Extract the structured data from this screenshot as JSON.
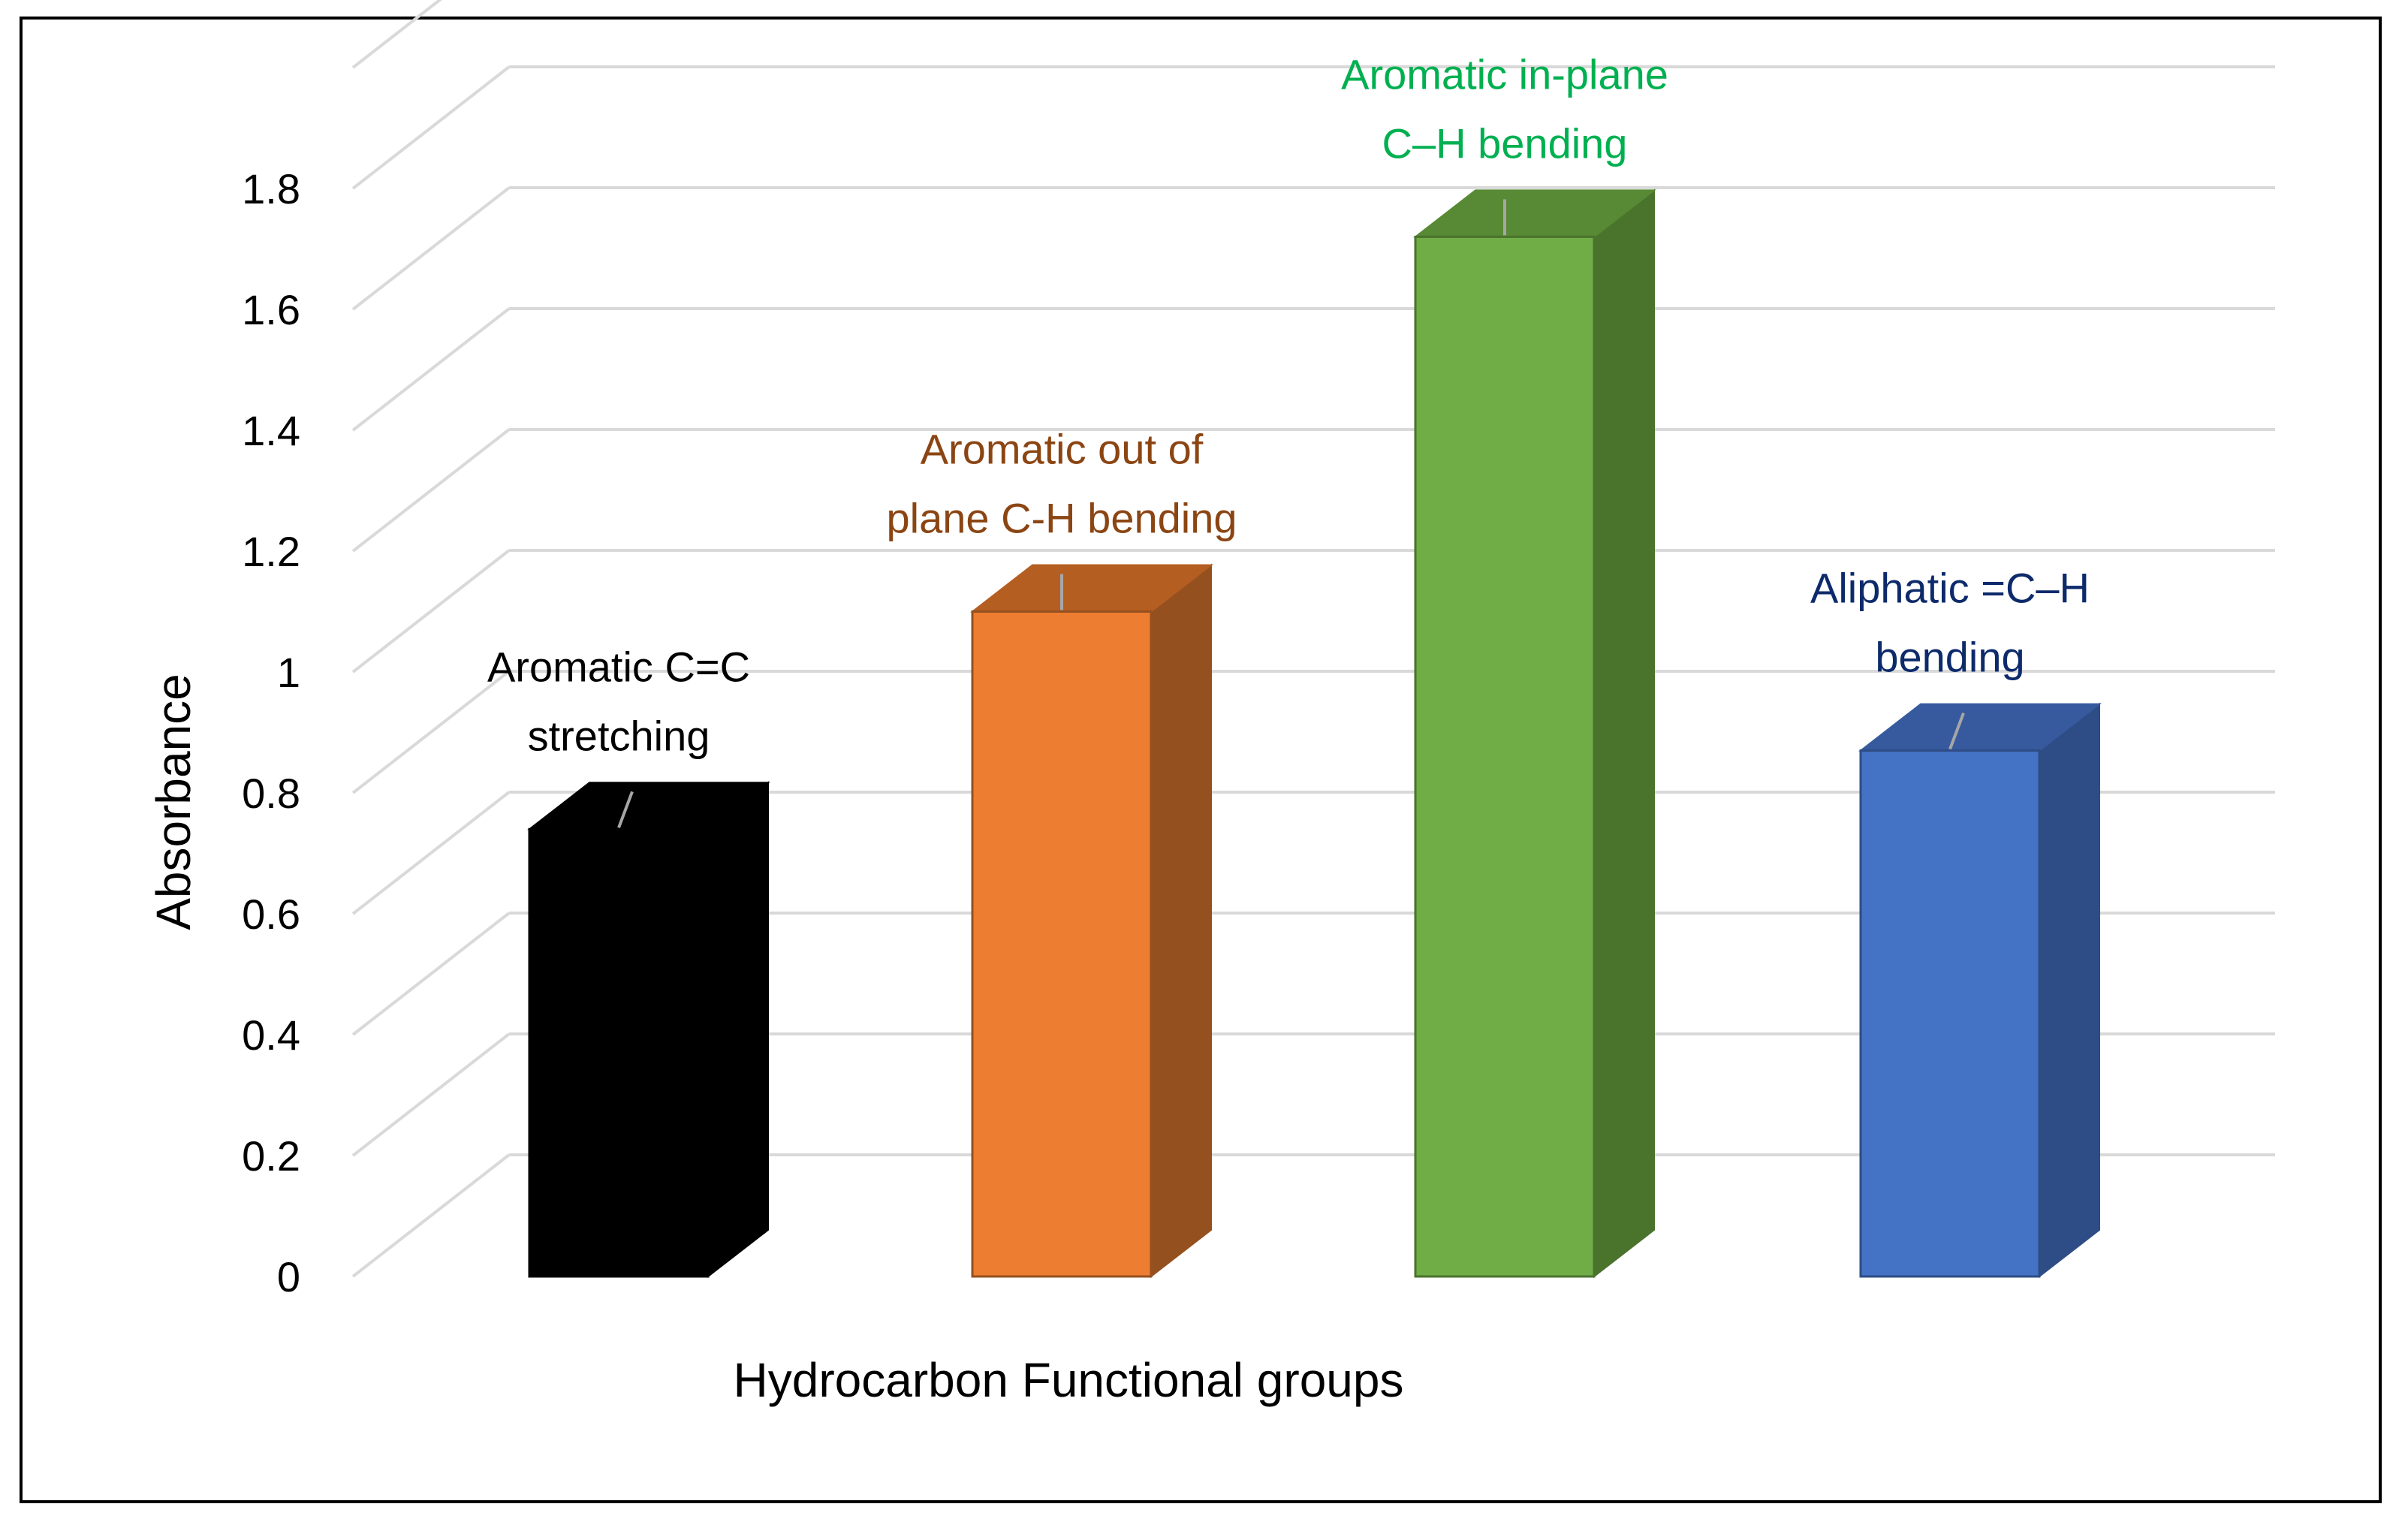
{
  "chart_data": {
    "type": "bar",
    "style": "3d-column",
    "title": "",
    "xlabel": "Hydrocarbon Functional groups",
    "ylabel": "Absorbance",
    "ylim": [
      0,
      2.0
    ],
    "yticks": [
      "0",
      "0.2",
      "0.4",
      "0.6",
      "0.8",
      "1",
      "1.2",
      "1.4",
      "1.6",
      "1.8"
    ],
    "grid": true,
    "categories": [
      "Aromatic C=C stretching",
      "Aromatic out of plane C-H bending",
      "Aromatic in-plane C–H bending",
      "Aliphatic =C–H bending"
    ],
    "values": [
      0.74,
      1.1,
      1.72,
      0.87
    ],
    "label_lines": [
      [
        "Aromatic C=C",
        "stretching"
      ],
      [
        "Aromatic out of",
        "plane C-H bending"
      ],
      [
        "Aromatic in-plane",
        "C–H bending"
      ],
      [
        "Aliphatic =C–H",
        "bending"
      ]
    ],
    "colors": {
      "front": [
        "#000000",
        "#ED7D31",
        "#70AD47",
        "#4472C4"
      ],
      "side": [
        "#000000",
        "#95501F",
        "#4A732C",
        "#2E4C85"
      ],
      "top": [
        "#000000",
        "#B55E22",
        "#588A35",
        "#375A9E"
      ],
      "label": [
        "#000000",
        "#8B4513",
        "#00B050",
        "#0D2A6B"
      ],
      "grid": "#D9D9D9",
      "leader": "#A6A6A6"
    }
  }
}
